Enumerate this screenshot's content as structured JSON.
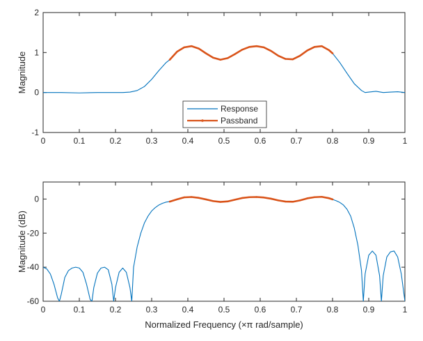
{
  "colors": {
    "response": "#0072BD",
    "passband": "#D95319",
    "axis": "#262626",
    "background": "#ffffff"
  },
  "chart_data": [
    {
      "type": "line",
      "title": "",
      "xlabel": "",
      "ylabel": "Magnitude",
      "xlim": [
        0,
        1
      ],
      "ylim": [
        -1,
        2
      ],
      "xticks": [
        "0",
        "0.1",
        "0.2",
        "0.3",
        "0.4",
        "0.5",
        "0.6",
        "0.7",
        "0.8",
        "0.9",
        "1"
      ],
      "yticks": [
        "-1",
        "0",
        "1",
        "2"
      ],
      "grid": false,
      "legend": {
        "placement": "bottom-center",
        "entries": [
          "Response",
          "Passband"
        ]
      },
      "series": [
        {
          "name": "Response",
          "x": [
            0,
            0.05,
            0.1,
            0.15,
            0.2,
            0.22,
            0.24,
            0.26,
            0.28,
            0.3,
            0.32,
            0.34,
            0.35,
            0.37,
            0.39,
            0.41,
            0.43,
            0.45,
            0.47,
            0.49,
            0.51,
            0.53,
            0.55,
            0.57,
            0.59,
            0.61,
            0.63,
            0.65,
            0.67,
            0.69,
            0.71,
            0.73,
            0.75,
            0.77,
            0.79,
            0.8,
            0.82,
            0.84,
            0.86,
            0.88,
            0.89,
            0.9,
            0.92,
            0.94,
            0.96,
            0.98,
            1
          ],
          "y": [
            0.0,
            0.0,
            -0.01,
            0.0,
            0.0,
            0.0,
            0.01,
            0.05,
            0.15,
            0.33,
            0.55,
            0.75,
            0.82,
            1.02,
            1.13,
            1.16,
            1.1,
            0.98,
            0.87,
            0.82,
            0.86,
            0.96,
            1.07,
            1.14,
            1.16,
            1.13,
            1.04,
            0.92,
            0.84,
            0.83,
            0.92,
            1.05,
            1.14,
            1.16,
            1.06,
            0.98,
            0.75,
            0.48,
            0.22,
            0.05,
            0.0,
            0.01,
            0.03,
            0.0,
            0.01,
            0.02,
            0.0
          ]
        },
        {
          "name": "Passband",
          "x": [
            0.35,
            0.37,
            0.39,
            0.41,
            0.43,
            0.45,
            0.47,
            0.49,
            0.51,
            0.53,
            0.55,
            0.57,
            0.59,
            0.61,
            0.63,
            0.65,
            0.67,
            0.69,
            0.71,
            0.73,
            0.75,
            0.77,
            0.79,
            0.8
          ],
          "y": [
            0.82,
            1.02,
            1.13,
            1.16,
            1.1,
            0.98,
            0.87,
            0.82,
            0.86,
            0.96,
            1.07,
            1.14,
            1.16,
            1.13,
            1.04,
            0.92,
            0.84,
            0.83,
            0.92,
            1.05,
            1.14,
            1.16,
            1.06,
            0.98
          ]
        }
      ]
    },
    {
      "type": "line",
      "title": "",
      "xlabel": "Normalized Frequency (×π rad/sample)",
      "ylabel": "Magnitude (dB)",
      "xlim": [
        0,
        1
      ],
      "ylim": [
        -60,
        10
      ],
      "xticks": [
        "0",
        "0.1",
        "0.2",
        "0.3",
        "0.4",
        "0.5",
        "0.6",
        "0.7",
        "0.8",
        "0.9",
        "1"
      ],
      "yticks": [
        "-60",
        "-40",
        "-20",
        "0"
      ],
      "grid": false,
      "series": [
        {
          "name": "Response",
          "x": [
            0,
            0.01,
            0.02,
            0.03,
            0.04,
            0.045,
            0.05,
            0.06,
            0.07,
            0.08,
            0.09,
            0.1,
            0.11,
            0.12,
            0.13,
            0.135,
            0.14,
            0.15,
            0.16,
            0.17,
            0.18,
            0.19,
            0.195,
            0.2,
            0.21,
            0.22,
            0.23,
            0.24,
            0.245,
            0.25,
            0.26,
            0.27,
            0.28,
            0.29,
            0.3,
            0.31,
            0.32,
            0.33,
            0.34,
            0.35,
            0.37,
            0.39,
            0.41,
            0.43,
            0.45,
            0.47,
            0.49,
            0.51,
            0.53,
            0.55,
            0.57,
            0.59,
            0.61,
            0.63,
            0.65,
            0.67,
            0.69,
            0.71,
            0.73,
            0.75,
            0.77,
            0.79,
            0.8,
            0.81,
            0.82,
            0.83,
            0.84,
            0.85,
            0.86,
            0.87,
            0.88,
            0.885,
            0.89,
            0.9,
            0.91,
            0.92,
            0.93,
            0.935,
            0.94,
            0.95,
            0.96,
            0.97,
            0.98,
            0.99,
            1
          ],
          "y": [
            -40,
            -41,
            -44,
            -50,
            -58,
            -60,
            -56,
            -46,
            -42,
            -40.5,
            -40,
            -40.5,
            -43,
            -50,
            -59,
            -60,
            -52,
            -43.5,
            -40.5,
            -40,
            -41.5,
            -50,
            -60,
            -52,
            -43,
            -40.5,
            -43,
            -52,
            -60,
            -40,
            -28,
            -20,
            -14,
            -10,
            -7,
            -5,
            -3.5,
            -2.5,
            -1.8,
            -1.5,
            -0.2,
            1.0,
            1.2,
            0.7,
            -0.2,
            -1.2,
            -1.7,
            -1.4,
            -0.4,
            0.6,
            1.1,
            1.2,
            0.9,
            0.2,
            -0.8,
            -1.5,
            -1.6,
            -0.8,
            0.4,
            1.1,
            1.3,
            0.5,
            -0.2,
            -1.0,
            -2.0,
            -3.5,
            -6.0,
            -10.0,
            -17.0,
            -27.0,
            -42.0,
            -60.0,
            -44.0,
            -33.0,
            -30.5,
            -33.0,
            -45.0,
            -60.0,
            -45.0,
            -34.0,
            -31.0,
            -30.5,
            -34.0,
            -44.0,
            -60.0
          ]
        },
        {
          "name": "Passband",
          "x": [
            0.35,
            0.37,
            0.39,
            0.41,
            0.43,
            0.45,
            0.47,
            0.49,
            0.51,
            0.53,
            0.55,
            0.57,
            0.59,
            0.61,
            0.63,
            0.65,
            0.67,
            0.69,
            0.71,
            0.73,
            0.75,
            0.77,
            0.79,
            0.8
          ],
          "y": [
            -1.5,
            -0.2,
            1.0,
            1.2,
            0.7,
            -0.2,
            -1.2,
            -1.7,
            -1.4,
            -0.4,
            0.6,
            1.1,
            1.2,
            0.9,
            0.2,
            -0.8,
            -1.5,
            -1.6,
            -0.8,
            0.4,
            1.1,
            1.3,
            0.5,
            -0.2
          ]
        }
      ]
    }
  ]
}
